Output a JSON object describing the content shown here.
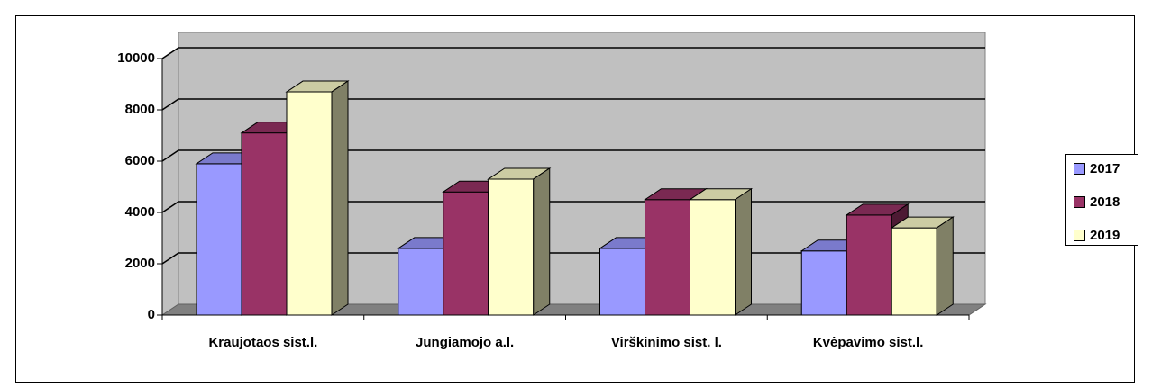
{
  "chart_data": {
    "type": "bar3d",
    "categories": [
      "Kraujotaos sist.l.",
      "Jungiamojo a.l.",
      "Virškinimo sist. l.",
      "Kvėpavimo sist.l."
    ],
    "series": [
      {
        "name": "2017",
        "color": "#9999ff",
        "values": [
          5900,
          2600,
          2600,
          2500
        ]
      },
      {
        "name": "2018",
        "color": "#993366",
        "values": [
          7100,
          4800,
          4500,
          3900
        ]
      },
      {
        "name": "2019",
        "color": "#ffffcc",
        "values": [
          8700,
          5300,
          4500,
          3400
        ]
      }
    ],
    "ylim": [
      0,
      10000
    ],
    "yticks": [
      0,
      2000,
      4000,
      6000,
      8000,
      10000
    ],
    "grid": true,
    "legend": "right"
  }
}
